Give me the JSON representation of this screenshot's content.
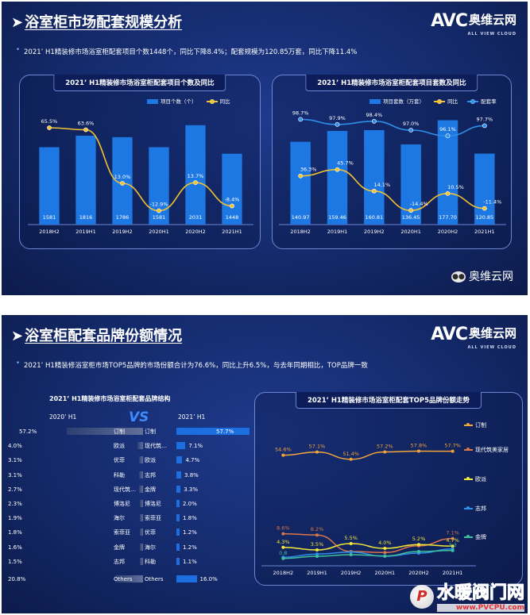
{
  "brand": {
    "logo": "AVC",
    "logo_cn": "奥维云网",
    "logo_en": "ALL VIEW CLOUD"
  },
  "colors": {
    "bar": "#1e78e4",
    "line_yoy": "#f2c12e",
    "line_rate": "#2f8fe8"
  },
  "slide1": {
    "title": "浴室柜市场配套规模分析",
    "summary": "2021’ H1精装修市场浴室柜配套项目个数1448个，同比下降8.4%；配套规模为120.85万套，同比下降11.4%",
    "wechat": "奥维云网"
  },
  "slide2": {
    "title": "浴室柜配套品牌份额情况",
    "summary": "2021’ H1精装修浴室柜市场TOP5品牌的市场份额合计为76.6%，同比上升6.5%，与去年同期相比，TOP品牌一致",
    "left_panel_title": "2021’ H1精装修市场浴室柜配套品牌结构",
    "vs": "VS",
    "year_left": "2020’ H1",
    "year_right": "2021’ H1",
    "watermark_cn": "水暖阀门网",
    "watermark_en": "www.PVCPU.com",
    "watermark_logo": "P"
  },
  "chart_data": [
    {
      "type": "bar",
      "title": "2021’ H1精装修市场浴室柜配套项目个数及同比",
      "categories": [
        "2018H2",
        "2019H1",
        "2019H2",
        "2020H1",
        "2020H2",
        "2021H1"
      ],
      "series": [
        {
          "name": "项目个数（个）",
          "type": "bar",
          "values": [
            1581,
            1816,
            1786,
            1581,
            2031,
            1448
          ],
          "labels": [
            "1581",
            "1816",
            "1786",
            "1581",
            "2031",
            "1448"
          ]
        },
        {
          "name": "同比",
          "type": "line",
          "values": [
            65.5,
            63.6,
            13.0,
            -12.9,
            13.7,
            -8.4
          ],
          "labels": [
            "65.5%",
            "63.6%",
            "13.0%",
            "-12.9%",
            "13.7%",
            "-8.4%"
          ]
        }
      ]
    },
    {
      "type": "bar",
      "title": "2021’ H1精装修市场浴室柜配套项目套数及同比",
      "categories": [
        "2018H2",
        "2019H1",
        "2019H2",
        "2020H1",
        "2020H2",
        "2021H1"
      ],
      "series": [
        {
          "name": "项目套数（万套）",
          "type": "bar",
          "values": [
            140.97,
            159.46,
            160.81,
            136.45,
            177.7,
            120.85
          ],
          "labels": [
            "140.97",
            "159.46",
            "160.81",
            "136.45",
            "177.70",
            "120.85"
          ]
        },
        {
          "name": "同比",
          "type": "line",
          "values": [
            36.3,
            45.7,
            14.1,
            -14.4,
            10.5,
            -11.4
          ],
          "labels": [
            "36.3%",
            "45.7%",
            "14.1%",
            "-14.4%",
            "10.5%",
            "-11.4%"
          ]
        },
        {
          "name": "配套率",
          "type": "line",
          "values": [
            98.7,
            97.9,
            98.4,
            97.0,
            96.1,
            97.7
          ],
          "labels": [
            "98.7%",
            "97.9%",
            "98.4%",
            "97.0%",
            "96.1%",
            "97.7%"
          ]
        }
      ]
    },
    {
      "type": "bar",
      "title": "2021’ H1精装修市场浴室柜配套品牌结构",
      "series": [
        {
          "name": "2020’ H1",
          "brands": [
            "订制",
            "欧派",
            "优菲",
            "科勒",
            "现代筑…",
            "博洛尼",
            "海尔",
            "索菲亚",
            "金牌",
            "志邦",
            "Others"
          ],
          "values": [
            57.2,
            4.0,
            3.1,
            3.1,
            2.7,
            2.3,
            1.9,
            1.8,
            1.6,
            1.5,
            20.8
          ],
          "labels": [
            "57.2%",
            "4.0%",
            "3.1%",
            "3.1%",
            "2.7%",
            "2.3%",
            "1.9%",
            "1.8%",
            "1.6%",
            "1.5%",
            "20.8%"
          ]
        },
        {
          "name": "2021’ H1",
          "brands": [
            "订制",
            "现代筑…",
            "欧派",
            "志邦",
            "金牌",
            "博洛尼",
            "索菲亚",
            "优菲",
            "海尔",
            "科勒",
            "Others"
          ],
          "values": [
            57.7,
            7.1,
            4.7,
            3.8,
            3.3,
            2.0,
            1.8,
            1.2,
            1.2,
            1.1,
            16.0
          ],
          "labels": [
            "57.7%",
            "7.1%",
            "4.7%",
            "3.8%",
            "3.3%",
            "2.0%",
            "1.8%",
            "1.2%",
            "1.2%",
            "1.1%",
            "16.0%"
          ]
        }
      ]
    },
    {
      "type": "line",
      "title": "2021’ H1精装修市场浴室柜配套TOP5品牌份额走势",
      "categories": [
        "2018H2",
        "2019H1",
        "2019H2",
        "2020H1",
        "2020H2",
        "2021H1"
      ],
      "series": [
        {
          "name": "订制",
          "color": "#f2a53a",
          "values": [
            54.6,
            57.1,
            51.4,
            57.2,
            57.8,
            57.7
          ],
          "labels": [
            "54.6%",
            "57.1%",
            "51.4%",
            "57.2%",
            "57.8%",
            "57.7%"
          ]
        },
        {
          "name": "现代筑美家居",
          "color": "#d9764a",
          "values": [
            8.6,
            8.2,
            3.0,
            2.7,
            4.8,
            7.1
          ],
          "labels": [
            "8.6%",
            "8.2%",
            "",
            "",
            "",
            "7.1%"
          ]
        },
        {
          "name": "欧派",
          "color": "#f5e63a",
          "values": [
            4.3,
            3.5,
            5.5,
            4.0,
            5.2,
            4.7
          ],
          "labels": [
            "4.3%",
            "3.5%",
            "5.5%",
            "4.0%",
            "5.2%",
            "4.7%"
          ]
        },
        {
          "name": "志邦",
          "color": "#2f8fe8",
          "values": [
            1.2,
            2.2,
            2.8,
            1.5,
            2.5,
            3.8
          ],
          "labels": [
            "",
            "",
            "",
            "",
            "",
            ""
          ]
        },
        {
          "name": "金牌",
          "color": "#3fbf9a",
          "values": [
            0.8,
            1.5,
            2.0,
            1.6,
            3.0,
            3.3
          ],
          "labels": [
            "0.8",
            "",
            "",
            "",
            "",
            "3.3"
          ]
        }
      ]
    }
  ]
}
